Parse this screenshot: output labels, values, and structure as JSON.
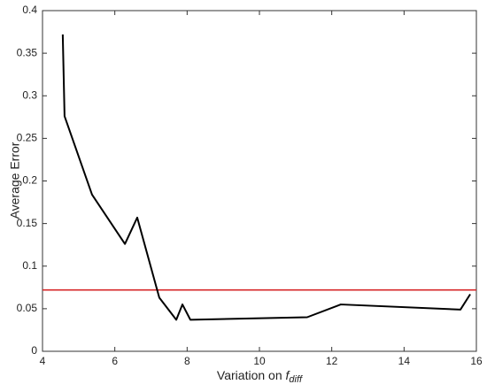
{
  "chart_data": {
    "type": "line",
    "xlabel": "Variation on",
    "xlabel_symbol": "f",
    "xlabel_subscript": "diff",
    "ylabel": "Average Error",
    "x": [
      4.56,
      4.61,
      5.37,
      6.28,
      6.62,
      7.23,
      7.7,
      7.87,
      8.09,
      11.32,
      12.25,
      15.56,
      15.83
    ],
    "series": [
      {
        "color": "#000000",
        "values": [
          0.372,
          0.276,
          0.184,
          0.126,
          0.157,
          0.063,
          0.037,
          0.055,
          0.037,
          0.04,
          0.055,
          0.049,
          0.067
        ]
      }
    ],
    "hline": {
      "y": 0.072,
      "color": "#d62728"
    },
    "xlim": [
      4,
      16
    ],
    "xticks": [
      4,
      6,
      8,
      10,
      12,
      14,
      16
    ],
    "ylim": [
      0,
      0.4
    ],
    "yticks": [
      0,
      0.05,
      0.1,
      0.15,
      0.2,
      0.25,
      0.3,
      0.35,
      0.4
    ],
    "grid": false
  }
}
